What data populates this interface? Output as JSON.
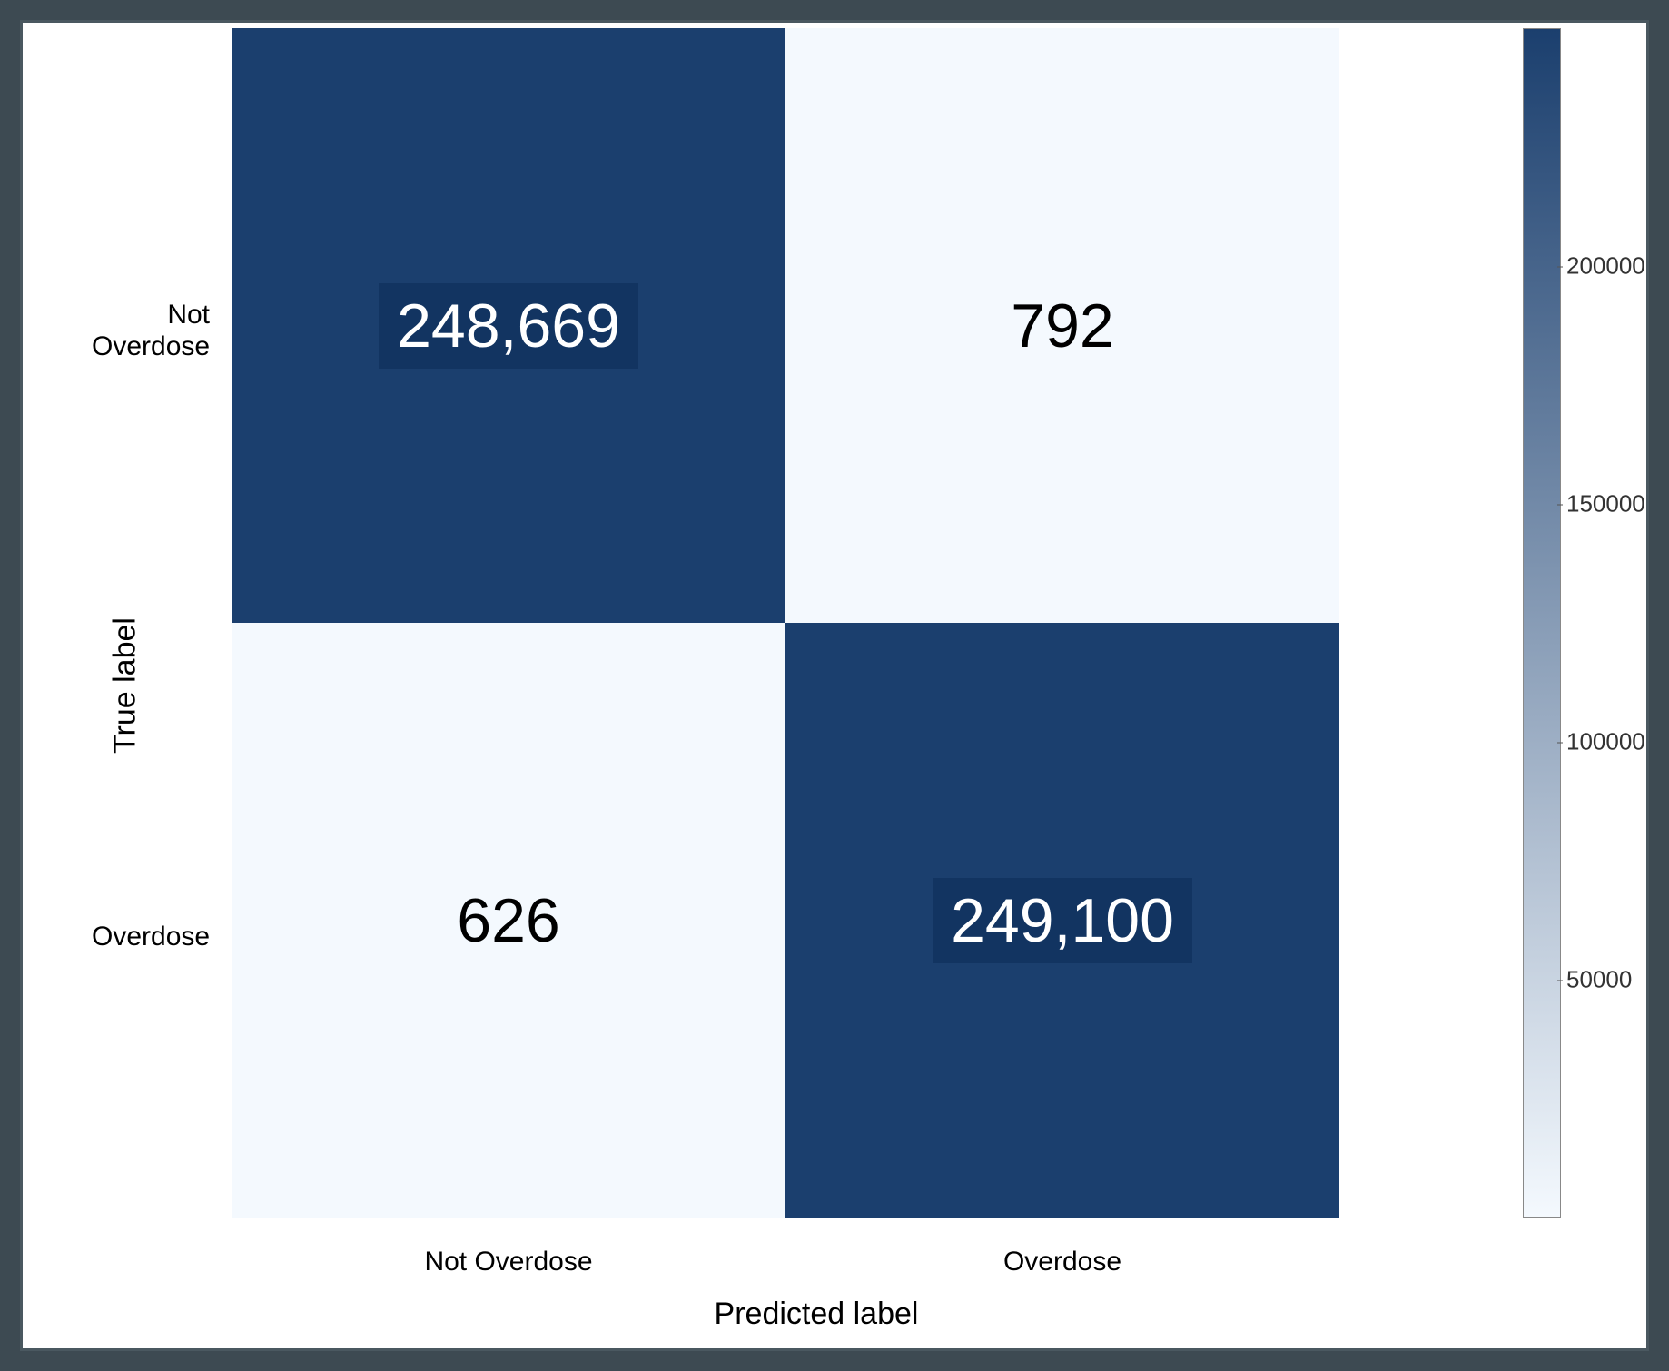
{
  "confusion_matrix": {
    "type": "heatmap",
    "x_axis_label": "Predicted label",
    "y_axis_label": "True label",
    "x_categories": [
      "Not Overdose",
      "Overdose"
    ],
    "y_categories": [
      "Not\nOverdose",
      "Overdose"
    ],
    "cells": [
      {
        "row": 0,
        "col": 0,
        "value": 248669,
        "display": "248,669",
        "bg_color": "#1b3f6e",
        "text_color": "#ffffff",
        "highbox": true
      },
      {
        "row": 0,
        "col": 1,
        "value": 792,
        "display": "792",
        "bg_color": "#f4f9fe",
        "text_color": "#000000",
        "highbox": false
      },
      {
        "row": 1,
        "col": 0,
        "value": 626,
        "display": "626",
        "bg_color": "#f4f9fe",
        "text_color": "#000000",
        "highbox": false
      },
      {
        "row": 1,
        "col": 1,
        "value": 249100,
        "display": "249,100",
        "bg_color": "#1b3f6e",
        "text_color": "#ffffff",
        "highbox": true
      }
    ],
    "value_fontsize": 68,
    "tick_fontsize": 30,
    "axis_label_fontsize": 34,
    "background_color": "#ffffff",
    "frame_color": "#3d4a52",
    "colorbar": {
      "min": 0,
      "max": 250000,
      "ticks": [
        50000,
        100000,
        150000,
        200000
      ],
      "tick_labels": [
        "50000",
        "100000",
        "150000",
        "200000"
      ],
      "gradient_top": "#1b3f6e",
      "gradient_bottom": "#f4f9fe"
    }
  }
}
